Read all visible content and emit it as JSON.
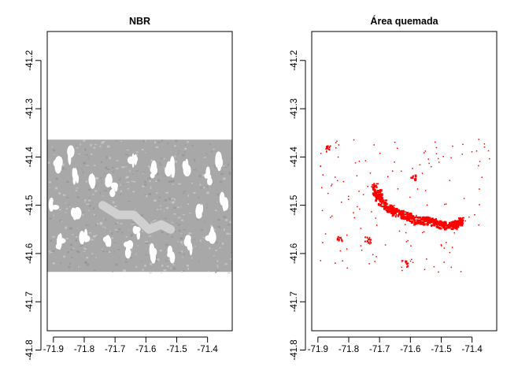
{
  "chart_data": [
    {
      "type": "raster",
      "title": "NBR",
      "xlim": [
        -71.92,
        -71.32
      ],
      "ylim": [
        -41.76,
        -41.14
      ],
      "x_ticks": [
        -71.9,
        -71.8,
        -71.7,
        -71.6,
        -71.5,
        -71.4
      ],
      "x_tick_labels": [
        "-71.9",
        "-71.8",
        "-71.7",
        "-71.6",
        "-71.5",
        "-71.4"
      ],
      "y_ticks": [
        -41.2,
        -41.3,
        -41.4,
        -41.5,
        -41.6,
        -41.7,
        -41.8
      ],
      "y_tick_labels": [
        "-41.2",
        "-41.3",
        "-41.4",
        "-41.5",
        "-41.6",
        "-41.7",
        "-41.8"
      ],
      "raster_extent": {
        "xmin": -71.92,
        "xmax": -71.32,
        "ymin": -41.638,
        "ymax": -41.364
      },
      "raster_colors": {
        "base": "#a8a8a8",
        "light": "#d4d4d4",
        "dark": "#8f8f8f",
        "no_data": "#ffffff"
      },
      "bright_band": [
        [
          -71.74,
          -41.5
        ],
        [
          -71.69,
          -41.52
        ],
        [
          -71.64,
          -41.52
        ],
        [
          -71.59,
          -41.55
        ],
        [
          -71.55,
          -41.54
        ],
        [
          -71.52,
          -41.55
        ]
      ],
      "no_data_patches": [
        [
          -71.89,
          -41.42
        ],
        [
          -71.85,
          -41.4
        ],
        [
          -71.83,
          -41.44
        ],
        [
          -71.78,
          -41.44
        ],
        [
          -71.72,
          -41.45
        ],
        [
          -71.7,
          -41.47
        ],
        [
          -71.64,
          -41.41
        ],
        [
          -71.57,
          -41.43
        ],
        [
          -71.52,
          -41.42
        ],
        [
          -71.47,
          -41.42
        ],
        [
          -71.4,
          -41.44
        ],
        [
          -71.36,
          -41.41
        ],
        [
          -71.35,
          -41.49
        ],
        [
          -71.42,
          -41.51
        ],
        [
          -71.39,
          -41.56
        ],
        [
          -71.46,
          -41.58
        ],
        [
          -71.52,
          -41.6
        ],
        [
          -71.58,
          -41.6
        ],
        [
          -71.66,
          -41.59
        ],
        [
          -71.72,
          -41.58
        ],
        [
          -71.8,
          -41.57
        ],
        [
          -71.88,
          -41.58
        ],
        [
          -71.83,
          -41.52
        ],
        [
          -71.9,
          -41.5
        ],
        [
          -71.63,
          -41.56
        ]
      ]
    },
    {
      "type": "raster",
      "title": "Área quemada",
      "xlim": [
        -71.92,
        -71.32
      ],
      "ylim": [
        -41.76,
        -41.14
      ],
      "x_ticks": [
        -71.9,
        -71.8,
        -71.7,
        -71.6,
        -71.5,
        -71.4
      ],
      "x_tick_labels": [
        "-71.9",
        "-71.8",
        "-71.7",
        "-71.6",
        "-71.5",
        "-71.4"
      ],
      "y_ticks": [
        -41.2,
        -41.3,
        -41.4,
        -41.5,
        -41.6,
        -41.7,
        -41.8
      ],
      "y_tick_labels": [
        "-41.2",
        "-41.3",
        "-41.4",
        "-41.5",
        "-41.6",
        "-41.7",
        "-41.8"
      ],
      "burn_color": "#ff0000",
      "burn_scar_path": [
        [
          -71.72,
          -41.46
        ],
        [
          -71.7,
          -41.49
        ],
        [
          -71.66,
          -41.51
        ],
        [
          -71.62,
          -41.52
        ],
        [
          -71.58,
          -41.53
        ],
        [
          -71.54,
          -41.53
        ],
        [
          -71.5,
          -41.54
        ],
        [
          -71.46,
          -41.54
        ],
        [
          -71.44,
          -41.53
        ]
      ],
      "burn_patches": [
        [
          -71.87,
          -41.38
        ],
        [
          -71.59,
          -41.44
        ],
        [
          -71.62,
          -41.62
        ],
        [
          -71.74,
          -41.57
        ],
        [
          -71.83,
          -41.57
        ]
      ]
    }
  ]
}
